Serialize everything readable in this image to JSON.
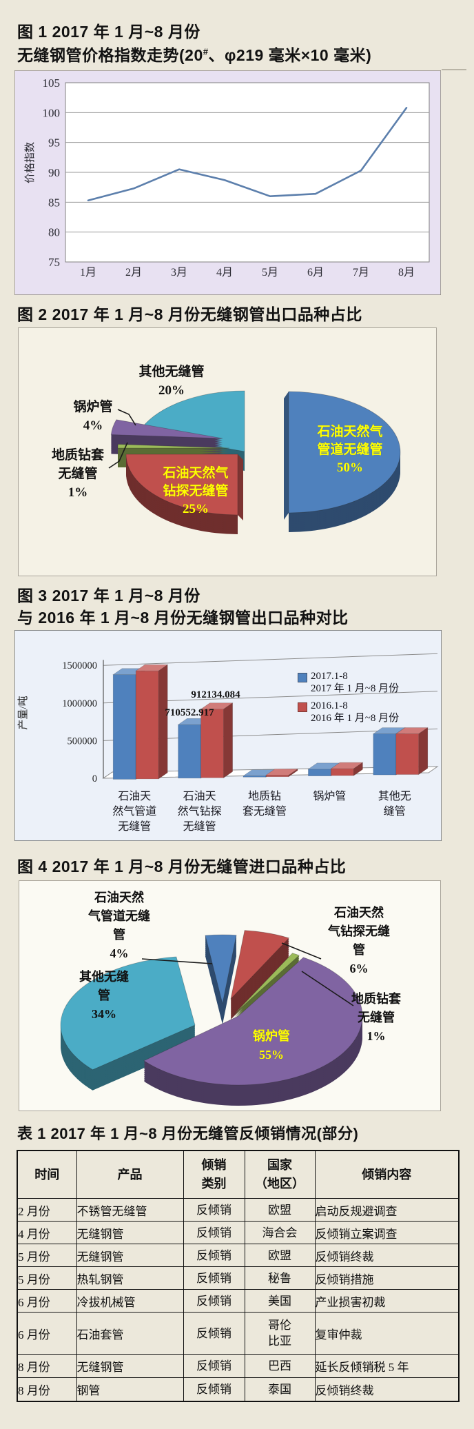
{
  "page": {
    "background": "#ECE8DB"
  },
  "palette": {
    "blue": "#4F81BD",
    "red": "#C0504D",
    "green": "#9BBB59",
    "purple": "#8064A2",
    "teal": "#4BACC6",
    "line_blue": "#5C7FAC",
    "inside_label": "#FFFF00",
    "title_text": "#121212"
  },
  "figure1": {
    "title_line1": "图 1 2017 年 1 月~8 月份",
    "title_line2_pre": "无缝钢管价格指数走势(20",
    "title_line2_sup": "#",
    "title_line2_post": "、φ219 毫米×10 毫米)",
    "chart_data": {
      "type": "line",
      "categories": [
        "1月",
        "2月",
        "3月",
        "4月",
        "5月",
        "6月",
        "7月",
        "8月"
      ],
      "values": [
        85.3,
        87.3,
        90.5,
        88.7,
        86.0,
        86.4,
        90.3,
        100.8
      ],
      "title": "",
      "xlabel": "",
      "ylabel": "价格指数",
      "ylim": [
        75,
        105
      ],
      "ytick_step": 5,
      "grid": true,
      "line_color": "#5C7FAC",
      "plot_bg": "#FFFFFF",
      "chart_bg": "#E8E1F2"
    }
  },
  "figure2": {
    "title": "图 2 2017 年 1 月~8 月份无缝钢管出口品种占比",
    "chart_data": {
      "type": "pie",
      "title": "",
      "slices": [
        {
          "label": "石油天然气管道无缝管",
          "pct": 50,
          "color": "#4F81BD",
          "label_text": "石油天然气\n管道无缝管\n50%"
        },
        {
          "label": "石油天然气钻探无缝管",
          "pct": 25,
          "color": "#C0504D",
          "label_text": "石油天然气\n钻探无缝管\n25%"
        },
        {
          "label": "地质钻套无缝管",
          "pct": 1,
          "color": "#9BBB59",
          "label_text": "地质钻套\n无缝管\n1%"
        },
        {
          "label": "锅炉管",
          "pct": 4,
          "color": "#8064A2",
          "label_text": "锅炉管\n4%"
        },
        {
          "label": "其他无缝管",
          "pct": 20,
          "color": "#4BACC6",
          "label_text": "其他无缝管\n20%"
        }
      ]
    }
  },
  "figure3": {
    "title_line1": "图 3 2017 年 1 月~8 月份",
    "title_line2": "与 2016 年 1 月~8 月份无缝钢管出口品种对比",
    "chart_data": {
      "type": "bar",
      "title": "",
      "categories": [
        "石油天然气管道无缝管",
        "石油天然气钻探无缝管",
        "地质钻套无缝管",
        "锅炉管",
        "其他无缝管"
      ],
      "categories_display": [
        "石油天\n然气管道\n无缝管",
        "石油天\n然气钻探\n无缝管",
        "地质钻\n套无缝管",
        "锅炉管",
        "其他无\n缝管"
      ],
      "series": [
        {
          "name": "2017.1-8",
          "name_cn": "2017 年 1 月~8 月份",
          "color": "#4F81BD",
          "values": [
            1390000,
            710552.917,
            15000,
            90000,
            545000
          ]
        },
        {
          "name": "2016.1-8",
          "name_cn": "2016 年 1 月~8 月份",
          "color": "#C0504D",
          "values": [
            1435000,
            912134.084,
            20000,
            92000,
            540000
          ]
        }
      ],
      "data_labels": [
        "710552.917",
        "912134.084"
      ],
      "xlabel": "",
      "ylabel": "产量/吨",
      "ylim": [
        0,
        1500000
      ],
      "ytick_step": 500000,
      "grid": true,
      "legend_position": "right",
      "chart_bg": "#ECF1F9"
    }
  },
  "figure4": {
    "title": "图 4 2017 年 1 月~8 月份无缝管进口品种占比",
    "chart_data": {
      "type": "pie",
      "title": "",
      "slices": [
        {
          "label": "石油天然气管道无缝管",
          "pct": 4,
          "color": "#4F81BD",
          "label_text": "石油天然\n气管道无缝\n管\n4%"
        },
        {
          "label": "石油天然气钻探无缝管",
          "pct": 6,
          "color": "#C0504D",
          "label_text": "石油天然\n气钻探无缝\n管\n6%"
        },
        {
          "label": "地质钻套无缝管",
          "pct": 1,
          "color": "#9BBB59",
          "label_text": "地质钻套\n无缝管\n1%"
        },
        {
          "label": "锅炉管",
          "pct": 55,
          "color": "#8064A2",
          "label_text": "锅炉管\n55%"
        },
        {
          "label": "其他无缝管",
          "pct": 34,
          "color": "#4BACC6",
          "label_text": "其他无缝\n管\n34%"
        }
      ]
    }
  },
  "table1": {
    "title": "表 1 2017 年 1 月~8 月份无缝管反倾销情况(部分)",
    "headers": [
      "时间",
      "产品",
      "倾销\n类别",
      "国家\n（地区）",
      "倾销内容"
    ],
    "rows": [
      [
        "2 月份",
        "不锈管无缝管",
        "反倾销",
        "欧盟",
        "启动反规避调查"
      ],
      [
        "4 月份",
        "无缝钢管",
        "反倾销",
        "海合会",
        "反倾销立案调查"
      ],
      [
        "5 月份",
        "无缝钢管",
        "反倾销",
        "欧盟",
        "反倾销终裁"
      ],
      [
        "5 月份",
        "热轧钢管",
        "反倾销",
        "秘鲁",
        "反倾销措施"
      ],
      [
        "6 月份",
        "冷拔机械管",
        "反倾销",
        "美国",
        "产业损害初裁"
      ],
      [
        "6 月份",
        "石油套管",
        "反倾销",
        "哥伦\n比亚",
        "复审仲裁"
      ],
      [
        "8 月份",
        "无缝钢管",
        "反倾销",
        "巴西",
        "延长反倾销税 5 年"
      ],
      [
        "8 月份",
        "钢管",
        "反倾销",
        "泰国",
        "反倾销终裁"
      ]
    ]
  }
}
